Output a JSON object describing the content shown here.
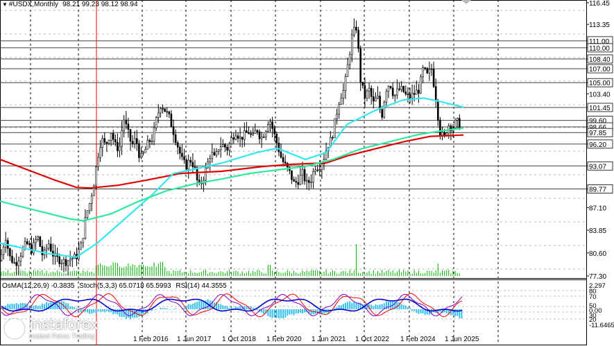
{
  "header": {
    "symbol": "#USDX,Monthly",
    "open": "98.21",
    "high": "99.23",
    "low": "98.12",
    "close": "98.94"
  },
  "indicators": {
    "osma": "OsMA(12,26,9) -0.3835",
    "stoch": "Stoch(5,3,3) 65.0718 65.5993",
    "rsi": "RSI(14) 44.3555"
  },
  "brand": {
    "name": "instaforex",
    "tagline": "Instant Forex Trading"
  },
  "colors": {
    "candle": "#000000",
    "ma_red": "#e00000",
    "ma_cyan": "#33e8f0",
    "ma_green": "#2ee8a0",
    "volume": "#00b000",
    "osma_hist": "#33c0f0",
    "stoch_main": "#0000cc",
    "stoch_signal": "#ff0000",
    "rsi": "#8000c0",
    "vline": "#ff0000"
  },
  "chart_data": {
    "type": "candlestick",
    "y_axis_labels": [
      "116.45",
      "113.35",
      "111.00",
      "110.00",
      "108.40",
      "107.00",
      "105.00",
      "103.40",
      "101.45",
      "99.60",
      "98.66",
      "97.85",
      "96.20",
      "93.07",
      "89.77",
      "87.10",
      "83.85",
      "80.60",
      "77.30"
    ],
    "level_lines": [
      111.0,
      110.0,
      108.4,
      107.0,
      105.0,
      101.45,
      99.6,
      98.66,
      97.85,
      96.2,
      93.07,
      89.77
    ],
    "x_labels": [
      "1 Feb 2016",
      "1 Jun 2017",
      "1 Oct 2018",
      "1 Feb 2020",
      "1 Jun 2021",
      "1 Oct 2022",
      "1 Feb 2024",
      "1 Jun 2025"
    ],
    "ylim": [
      77.3,
      116.45
    ],
    "close_path": [
      [
        0,
        79.5
      ],
      [
        8,
        83
      ],
      [
        14,
        80
      ],
      [
        22,
        79
      ],
      [
        30,
        80.5
      ],
      [
        38,
        82
      ],
      [
        46,
        81
      ],
      [
        54,
        83
      ],
      [
        62,
        80
      ],
      [
        70,
        82
      ],
      [
        78,
        80
      ],
      [
        86,
        79.6
      ],
      [
        94,
        79.3
      ],
      [
        102,
        79.8
      ],
      [
        110,
        80
      ],
      [
        118,
        82
      ],
      [
        124,
        86
      ],
      [
        130,
        88
      ],
      [
        136,
        91
      ],
      [
        140,
        94
      ],
      [
        146,
        97
      ],
      [
        152,
        96
      ],
      [
        160,
        98
      ],
      [
        166,
        96
      ],
      [
        172,
        95.5
      ],
      [
        178,
        100
      ],
      [
        184,
        98
      ],
      [
        190,
        96
      ],
      [
        196,
        97
      ],
      [
        202,
        94
      ],
      [
        208,
        95
      ],
      [
        214,
        96.5
      ],
      [
        220,
        97
      ],
      [
        226,
        100
      ],
      [
        232,
        102
      ],
      [
        238,
        101
      ],
      [
        244,
        100
      ],
      [
        250,
        98
      ],
      [
        256,
        96
      ],
      [
        262,
        94
      ],
      [
        268,
        93
      ],
      [
        274,
        94
      ],
      [
        280,
        93
      ],
      [
        286,
        90
      ],
      [
        292,
        91
      ],
      [
        298,
        93
      ],
      [
        304,
        95
      ],
      [
        310,
        94
      ],
      [
        316,
        96
      ],
      [
        322,
        96
      ],
      [
        328,
        95.5
      ],
      [
        334,
        97
      ],
      [
        340,
        98
      ],
      [
        346,
        97
      ],
      [
        352,
        97.5
      ],
      [
        358,
        98
      ],
      [
        364,
        97
      ],
      [
        370,
        98.5
      ],
      [
        376,
        97
      ],
      [
        382,
        98
      ],
      [
        388,
        100
      ],
      [
        394,
        98
      ],
      [
        400,
        96
      ],
      [
        406,
        94
      ],
      [
        412,
        93
      ],
      [
        418,
        92
      ],
      [
        424,
        90.5
      ],
      [
        430,
        91
      ],
      [
        436,
        92
      ],
      [
        442,
        90.5
      ],
      [
        448,
        91
      ],
      [
        454,
        93
      ],
      [
        460,
        93
      ],
      [
        466,
        94
      ],
      [
        472,
        96
      ],
      [
        478,
        97
      ],
      [
        484,
        100
      ],
      [
        490,
        103
      ],
      [
        496,
        104
      ],
      [
        502,
        108
      ],
      [
        508,
        112
      ],
      [
        514,
        113
      ],
      [
        520,
        105
      ],
      [
        526,
        103
      ],
      [
        532,
        104
      ],
      [
        538,
        102
      ],
      [
        544,
        103
      ],
      [
        550,
        100
      ],
      [
        556,
        104
      ],
      [
        562,
        105
      ],
      [
        568,
        103
      ],
      [
        574,
        104
      ],
      [
        580,
        104
      ],
      [
        586,
        103
      ],
      [
        592,
        103
      ],
      [
        598,
        103.5
      ],
      [
        604,
        104
      ],
      [
        610,
        107
      ],
      [
        616,
        106
      ],
      [
        622,
        107
      ],
      [
        628,
        103
      ],
      [
        634,
        98
      ],
      [
        640,
        97
      ],
      [
        646,
        99
      ],
      [
        652,
        98.5
      ],
      [
        658,
        99.5
      ],
      [
        662,
        98.9
      ]
    ],
    "moving_averages": [
      {
        "points": [
          [
            0,
            94
          ],
          [
            40,
            92.5
          ],
          [
            80,
            91
          ],
          [
            110,
            90
          ],
          [
            130,
            89.9
          ],
          [
            170,
            90.3
          ],
          [
            210,
            91
          ],
          [
            260,
            92
          ],
          [
            320,
            92.3
          ],
          [
            380,
            93
          ],
          [
            420,
            93.3
          ],
          [
            470,
            93.5
          ],
          [
            500,
            94.5
          ],
          [
            540,
            95.5
          ],
          [
            580,
            96.5
          ],
          [
            620,
            97.3
          ],
          [
            668,
            97.5
          ]
        ]
      },
      {
        "points": [
          [
            0,
            82
          ],
          [
            70,
            80.5
          ],
          [
            110,
            80
          ],
          [
            140,
            82
          ],
          [
            180,
            85.5
          ],
          [
            220,
            89
          ],
          [
            250,
            92
          ],
          [
            280,
            92.6
          ],
          [
            320,
            93.5
          ],
          [
            370,
            95
          ],
          [
            400,
            95.6
          ],
          [
            440,
            94
          ],
          [
            470,
            95
          ],
          [
            500,
            99
          ],
          [
            540,
            101
          ],
          [
            580,
            102.5
          ],
          [
            610,
            102.8
          ],
          [
            630,
            102.4
          ],
          [
            668,
            101.5
          ]
        ]
      },
      {
        "points": [
          [
            0,
            88
          ],
          [
            60,
            86.5
          ],
          [
            100,
            85.5
          ],
          [
            120,
            85.2
          ],
          [
            160,
            86.2
          ],
          [
            200,
            88
          ],
          [
            240,
            89.5
          ],
          [
            280,
            90.5
          ],
          [
            320,
            91.2
          ],
          [
            360,
            92
          ],
          [
            400,
            92.5
          ],
          [
            440,
            93
          ],
          [
            480,
            94
          ],
          [
            520,
            95.5
          ],
          [
            560,
            96.5
          ],
          [
            600,
            97.5
          ],
          [
            630,
            98
          ],
          [
            668,
            98.5
          ]
        ]
      }
    ]
  }
}
